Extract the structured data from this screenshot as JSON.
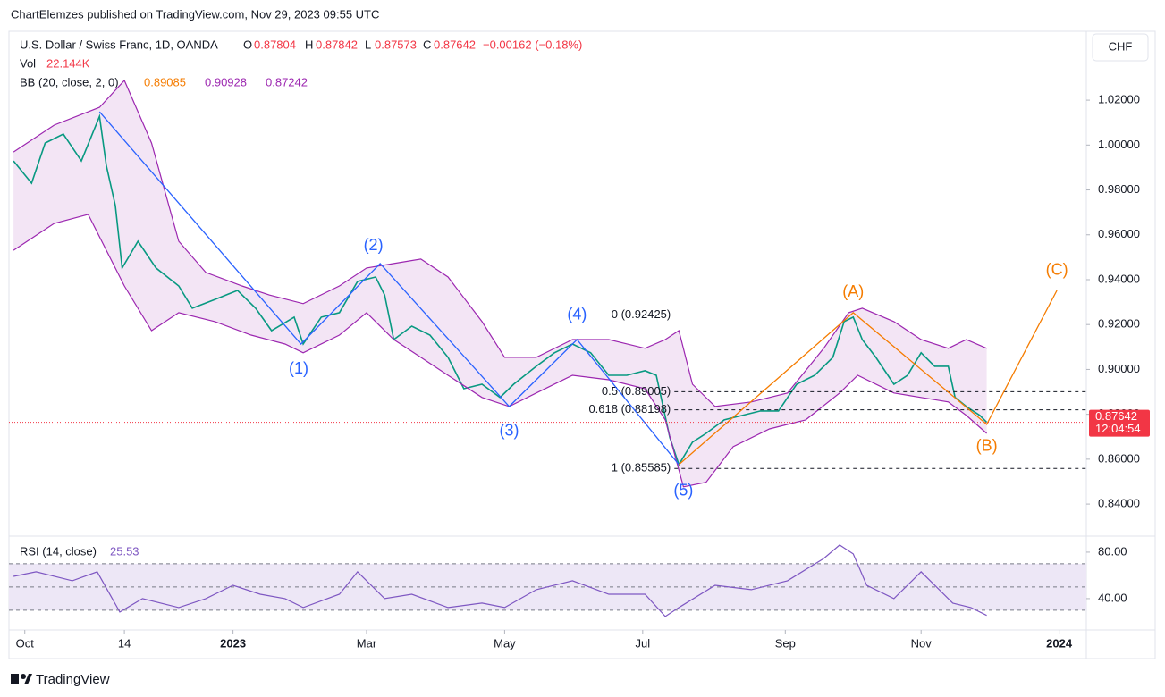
{
  "header": {
    "published": "ChartElemzes published on TradingView.com, Nov 29, 2023 09:55 UTC",
    "brand": "TradingView"
  },
  "chart_data": [
    {
      "type": "line",
      "title": "U.S. Dollar / Swiss Franc, 1D, OANDA",
      "ohlc": [
        {
          "label": "O",
          "value": 0.87804
        },
        {
          "label": "H",
          "value": 0.87842
        },
        {
          "label": "L",
          "value": 0.87573
        },
        {
          "label": "C",
          "value": 0.87642
        }
      ],
      "change": "−0.00162 (−0.18%)",
      "volume": {
        "label": "Vol",
        "value": "22.144K"
      },
      "bb": {
        "label": "BB (20, close, 2, 0)",
        "values": [
          0.89085,
          0.90928,
          0.87242
        ],
        "colors": [
          "#f57c00",
          "#9c27b0",
          "#9c27b0"
        ]
      },
      "currency": "CHF",
      "xlim": [
        -7,
        469
      ],
      "ylim": [
        0.8257,
        1.0507
      ],
      "yticks": [
        {
          "value": 0.84,
          "label": "0.84000"
        },
        {
          "value": 0.86,
          "label": "0.86000"
        },
        {
          "value": 0.88,
          "label": "0.88000"
        },
        {
          "value": 0.9,
          "label": "0.90000"
        },
        {
          "value": 0.92,
          "label": "0.92000"
        },
        {
          "value": 0.94,
          "label": "0.94000"
        },
        {
          "value": 0.96,
          "label": "0.96000"
        },
        {
          "value": 0.98,
          "label": "0.98000"
        },
        {
          "value": 1.0,
          "label": "1.00000"
        },
        {
          "value": 1.02,
          "label": "1.02000"
        }
      ],
      "band_fill": "#f3e5f5",
      "series": [
        {
          "color": "#089981",
          "x": [
            -5,
            3,
            9,
            17,
            25,
            33,
            36,
            40,
            43,
            50,
            58,
            68,
            74,
            84,
            94,
            102,
            109,
            119,
            123,
            131,
            139,
            147,
            155,
            159,
            163,
            171,
            179,
            187,
            194,
            202,
            210,
            216,
            226,
            234,
            242,
            250,
            258,
            266,
            274,
            279,
            285,
            289,
            295,
            301,
            309,
            317,
            325,
            333,
            341,
            349,
            357,
            362,
            366,
            370,
            376,
            384,
            390,
            396,
            402,
            408,
            411,
            416,
            422,
            425
          ],
          "values": [
            0.9929,
            0.983,
            1.0009,
            1.0049,
            0.9929,
            1.0128,
            0.9909,
            0.973,
            0.9452,
            0.9571,
            0.9452,
            0.9372,
            0.9273,
            0.9312,
            0.9352,
            0.9273,
            0.9173,
            0.9233,
            0.9113,
            0.9233,
            0.9253,
            0.9392,
            0.9412,
            0.9332,
            0.9133,
            0.9193,
            0.9153,
            0.9054,
            0.8914,
            0.8934,
            0.8875,
            0.8934,
            0.9014,
            0.9074,
            0.9113,
            0.9074,
            0.8974,
            0.8974,
            0.8994,
            0.8974,
            0.8696,
            0.8576,
            0.8676,
            0.8715,
            0.8775,
            0.8795,
            0.8815,
            0.8815,
            0.8934,
            0.8974,
            0.9054,
            0.9213,
            0.9233,
            0.9133,
            0.9054,
            0.8934,
            0.8974,
            0.9074,
            0.9014,
            0.9014,
            0.8875,
            0.8835,
            0.8795,
            0.87642
          ]
        },
        {
          "color": "#9c27b0",
          "x": [
            -5,
            13,
            33,
            44,
            56,
            68,
            80,
            96,
            108,
            123,
            139,
            151,
            163,
            175,
            187,
            202,
            212,
            226,
            242,
            258,
            274,
            283,
            289,
            295,
            305,
            321,
            337,
            353,
            364,
            370,
            384,
            396,
            408,
            416,
            425
          ],
          "values": [
            0.9969,
            1.0089,
            1.0168,
            1.0288,
            1.0009,
            0.9571,
            0.9432,
            0.9372,
            0.9332,
            0.9293,
            0.9372,
            0.9452,
            0.9472,
            0.9492,
            0.9412,
            0.9213,
            0.9054,
            0.9054,
            0.9133,
            0.9133,
            0.9094,
            0.9133,
            0.9173,
            0.8934,
            0.8835,
            0.8855,
            0.8895,
            0.9094,
            0.9253,
            0.9273,
            0.9213,
            0.9133,
            0.9094,
            0.9133,
            0.9094
          ]
        },
        {
          "color": "#9c27b0",
          "x": [
            -5,
            13,
            28,
            44,
            56,
            68,
            84,
            100,
            115,
            123,
            139,
            151,
            163,
            175,
            187,
            202,
            214,
            226,
            242,
            258,
            274,
            283,
            291,
            301,
            313,
            329,
            345,
            360,
            368,
            384,
            396,
            408,
            416,
            425
          ],
          "values": [
            0.9531,
            0.9651,
            0.9691,
            0.9372,
            0.9173,
            0.9253,
            0.9213,
            0.9153,
            0.9113,
            0.9074,
            0.9153,
            0.9253,
            0.9133,
            0.9054,
            0.8974,
            0.8875,
            0.8835,
            0.8895,
            0.8974,
            0.8954,
            0.8914,
            0.8775,
            0.8477,
            0.8497,
            0.8656,
            0.8735,
            0.8775,
            0.8895,
            0.8974,
            0.8895,
            0.8875,
            0.8855,
            0.8795,
            0.8715
          ]
        }
      ],
      "wave_lines": [
        {
          "color": "#2962ff",
          "x": [
            33,
            122,
            157,
            214,
            244,
            289
          ],
          "values": [
            1.0148,
            0.9113,
            0.9472,
            0.8835,
            0.9133,
            0.8576
          ]
        },
        {
          "color": "#f57c00",
          "x": [
            289,
            366,
            425,
            456
          ],
          "values": [
            0.8576,
            0.9253,
            0.8755,
            0.9352
          ]
        }
      ],
      "waves": [
        {
          "text": "(1)",
          "x": 121,
          "y": 0.9,
          "color": "#2962ff"
        },
        {
          "text": "(2)",
          "x": 154,
          "y": 0.9551,
          "color": "#2962ff"
        },
        {
          "text": "(3)",
          "x": 214,
          "y": 0.8723,
          "color": "#2962ff"
        },
        {
          "text": "(4)",
          "x": 244,
          "y": 0.9241,
          "color": "#2962ff"
        },
        {
          "text": "(5)",
          "x": 291,
          "y": 0.8457,
          "color": "#2962ff"
        },
        {
          "text": "(A)",
          "x": 366,
          "y": 0.9344,
          "color": "#f57c00"
        },
        {
          "text": "(B)",
          "x": 425,
          "y": 0.8656,
          "color": "#f57c00"
        },
        {
          "text": "(C)",
          "x": 456,
          "y": 0.944,
          "color": "#f57c00"
        }
      ],
      "fib": {
        "x": 287,
        "levels": [
          {
            "label": "0 (0.92425)",
            "value": 0.92425
          },
          {
            "label": "0.5 (0.89005)",
            "value": 0.89005
          },
          {
            "label": "0.618 (0.88198)",
            "value": 0.88198
          },
          {
            "label": "1 (0.85585)",
            "value": 0.85585
          }
        ]
      },
      "last_price": {
        "value": 0.87642,
        "countdown": "12:04:54",
        "color": "#f23645"
      }
    },
    {
      "type": "line",
      "title": "RSI (14, close)",
      "last": 25.53,
      "color": "#7e57c2",
      "xlim": [
        -7,
        469
      ],
      "ylim": [
        13,
        93.8
      ],
      "yticks": [
        {
          "value": 80,
          "label": "80.00"
        },
        {
          "value": 40,
          "label": "40.00"
        }
      ],
      "levels": [
        30,
        50,
        70
      ],
      "xticks": [
        {
          "value": 0,
          "label": "Oct"
        },
        {
          "value": 44,
          "label": "14"
        },
        {
          "value": 92,
          "label": "2023"
        },
        {
          "value": 151,
          "label": "Mar"
        },
        {
          "value": 212,
          "label": "May"
        },
        {
          "value": 273,
          "label": "Jul"
        },
        {
          "value": 336,
          "label": "Sep"
        },
        {
          "value": 396,
          "label": "Nov"
        },
        {
          "value": 457,
          "label": "2024"
        }
      ],
      "series": [
        {
          "color": "#7e57c2",
          "x": [
            -5,
            5,
            21,
            32,
            42,
            52,
            68,
            80,
            92,
            104,
            115,
            123,
            139,
            147,
            159,
            171,
            187,
            202,
            212,
            226,
            242,
            258,
            274,
            283,
            289,
            305,
            321,
            337,
            353,
            360,
            366,
            372,
            384,
            392,
            396,
            404,
            410,
            418,
            425
          ],
          "values": [
            59.2,
            63.1,
            55.4,
            63.1,
            28.5,
            40,
            32.3,
            40,
            51.5,
            43.8,
            40,
            32.3,
            43.8,
            63.1,
            40,
            43.8,
            32.3,
            36.2,
            32.3,
            47.7,
            55.4,
            43.8,
            43.8,
            24.6,
            32.3,
            51.5,
            47.7,
            55.4,
            74.6,
            86.2,
            78.5,
            51.5,
            40,
            55.4,
            63.1,
            47.7,
            36.2,
            32.3,
            25.53
          ]
        }
      ]
    }
  ]
}
